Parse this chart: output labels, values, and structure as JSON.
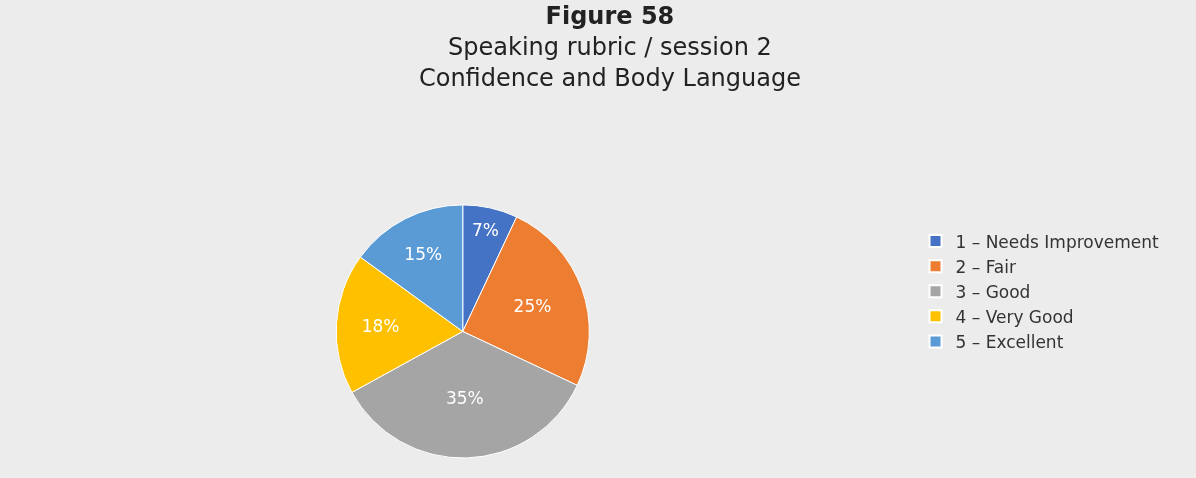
{
  "chart_data": {
    "type": "pie",
    "title": "Figure 58",
    "subtitle": "Speaking rubric / session 2\nConfidence and Body Language",
    "categories": [
      "1 – Needs Improvement",
      "2 – Fair",
      "3 – Good",
      "4 – Very Good",
      "5 – Excellent"
    ],
    "values": [
      7,
      25,
      35,
      18,
      15
    ],
    "colors": [
      "#4472c4",
      "#ed7d31",
      "#a5a5a5",
      "#ffc000",
      "#5b9bd5"
    ],
    "value_labels": [
      "7%",
      "25%",
      "35%",
      "18%",
      "15%"
    ],
    "legend": "right"
  }
}
